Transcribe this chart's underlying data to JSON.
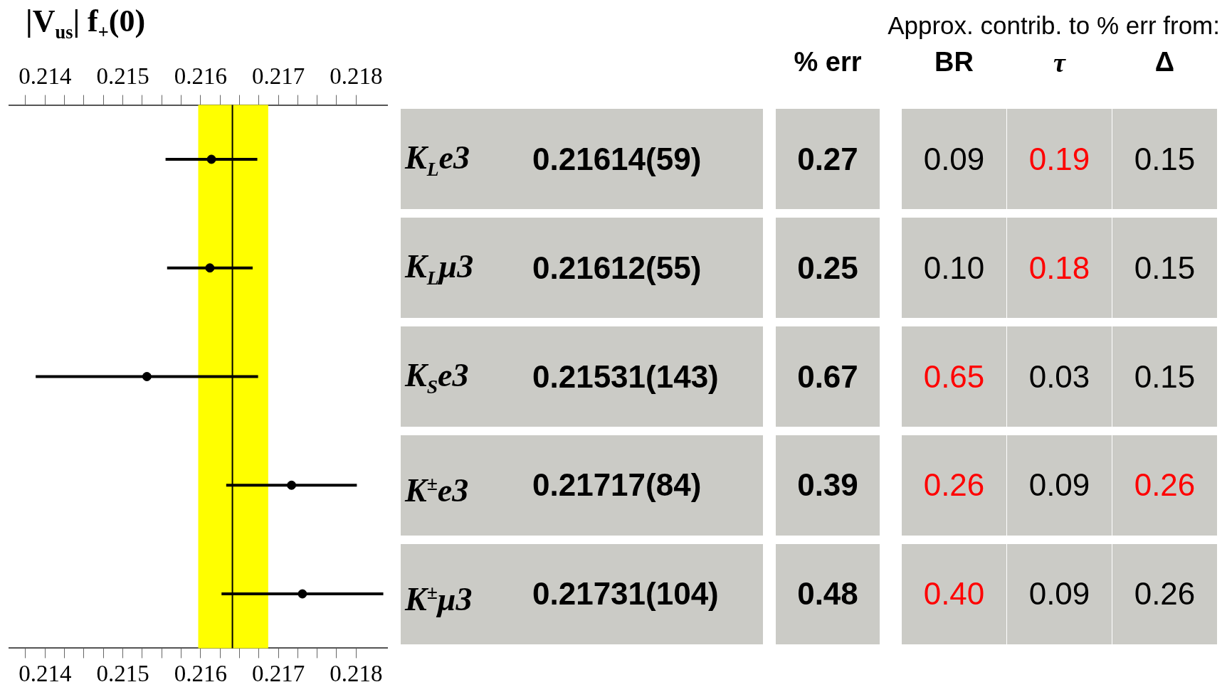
{
  "chart_data": [
    {
      "type": "scatter",
      "orientation": "horizontal",
      "title": "|V$_{us}$| f$_{+}$(0)",
      "categories": [
        "K$_{L}$e3",
        "K$_{L}$μ3",
        "K$_{S}$e3",
        "K$^{±}$e3",
        "K$^{±}$μ3"
      ],
      "values": [
        0.21614,
        0.21612,
        0.21531,
        0.21717,
        0.21731
      ],
      "errors": [
        0.00059,
        0.00055,
        0.00143,
        0.00084,
        0.00104
      ],
      "color": "#000000",
      "marker": "circle",
      "legend": false,
      "grid": false,
      "xlim": [
        0.21354,
        0.2184
      ],
      "xticks": [
        {
          "value": 0.21375,
          "label": null
        },
        0.214,
        {
          "value": 0.21425,
          "label": null
        },
        {
          "value": 0.2145,
          "label": null
        },
        {
          "value": 0.21475,
          "label": null
        },
        0.215,
        {
          "value": 0.21525,
          "label": null
        },
        {
          "value": 0.2155,
          "label": null
        },
        {
          "value": 0.21575,
          "label": null
        },
        0.216,
        {
          "value": 0.21625,
          "label": null
        },
        {
          "value": 0.2165,
          "label": null
        },
        {
          "value": 0.21675,
          "label": null
        },
        0.217,
        {
          "value": 0.21725,
          "label": null
        },
        {
          "value": 0.2175,
          "label": null
        },
        {
          "value": 0.21775,
          "label": null
        },
        0.218
      ],
      "x2lim": [
        0.21354,
        0.2184
      ],
      "x2ticks": [
        {
          "value": 0.21375,
          "label": null
        },
        0.214,
        {
          "value": 0.21425,
          "label": null
        },
        {
          "value": 0.2145,
          "label": null
        },
        {
          "value": 0.21475,
          "label": null
        },
        0.215,
        {
          "value": 0.21525,
          "label": null
        },
        {
          "value": 0.2155,
          "label": null
        },
        {
          "value": 0.21575,
          "label": null
        },
        0.216,
        {
          "value": 0.21625,
          "label": null
        },
        {
          "value": 0.2165,
          "label": null
        },
        {
          "value": 0.21675,
          "label": null
        },
        0.217,
        {
          "value": 0.21725,
          "label": null
        },
        {
          "value": 0.2175,
          "label": null
        },
        {
          "value": 0.21775,
          "label": null
        },
        0.218
      ],
      "bands": [
        {
          "axis": "x",
          "from": 0.21597,
          "to": 0.21687,
          "color": "#ffff00"
        }
      ],
      "ref_lines": [
        {
          "axis": "x",
          "value": 0.21641,
          "color": "#000000"
        }
      ]
    },
    {
      "type": "heatmap",
      "title": "Approx. contrib. to % err from:",
      "categories": [
        "% err",
        "BR",
        "τ",
        "Δ"
      ],
      "y_categories": [
        "0.21614(59)",
        "0.21612(55)",
        "0.21531(143)",
        "0.21717(84)",
        "0.21731(104)"
      ],
      "cells": [
        [
          0.27,
          0.09,
          0.19,
          0.15
        ],
        [
          0.25,
          0.1,
          0.18,
          0.15
        ],
        [
          0.67,
          0.65,
          0.03,
          0.15
        ],
        [
          0.39,
          0.26,
          0.09,
          0.26
        ],
        [
          0.48,
          0.4,
          0.09,
          0.26
        ]
      ],
      "cell_labels": [
        [
          "0.27",
          "0.09",
          "0.19",
          "0.15"
        ],
        [
          "0.25",
          "0.10",
          "0.18",
          "0.15"
        ],
        [
          "0.67",
          "0.65",
          "0.03",
          "0.15"
        ],
        [
          "0.39",
          "0.26",
          "0.09",
          "0.26"
        ],
        [
          "0.48",
          "0.40",
          "0.09",
          "0.26"
        ]
      ],
      "color": "#cbcbc6"
    }
  ]
}
